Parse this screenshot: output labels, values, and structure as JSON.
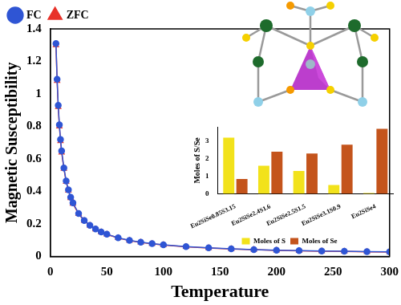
{
  "chart_data": [
    {
      "type": "line",
      "x_label": "Temperature",
      "y_label": "Magnetic Susceptibility",
      "x": [
        5,
        6,
        7,
        8,
        9,
        10,
        12,
        14,
        16,
        18,
        20,
        25,
        30,
        35,
        40,
        45,
        50,
        60,
        70,
        80,
        90,
        100,
        120,
        140,
        160,
        180,
        200,
        220,
        240,
        260,
        280,
        300
      ],
      "series": [
        {
          "name": "FC",
          "color": "#2f55d4",
          "marker": "circle",
          "line_style": "solid",
          "values": [
            1.31,
            1.09,
            0.93,
            0.81,
            0.72,
            0.65,
            0.545,
            0.465,
            0.41,
            0.365,
            0.33,
            0.265,
            0.222,
            0.192,
            0.169,
            0.151,
            0.137,
            0.115,
            0.099,
            0.088,
            0.079,
            0.072,
            0.061,
            0.053,
            0.047,
            0.043,
            0.039,
            0.036,
            0.034,
            0.032,
            0.03,
            0.029
          ]
        },
        {
          "name": "ZFC",
          "color": "#e8322a",
          "marker": "triangle",
          "line_style": "solid",
          "values": [
            1.3,
            1.08,
            0.92,
            0.8,
            0.71,
            0.64,
            0.54,
            0.46,
            0.405,
            0.36,
            0.325,
            0.262,
            0.22,
            0.19,
            0.167,
            0.15,
            0.136,
            0.114,
            0.098,
            0.087,
            0.078,
            0.071,
            0.06,
            0.052,
            0.046,
            0.042,
            0.038,
            0.035,
            0.033,
            0.031,
            0.029,
            0.028
          ]
        }
      ],
      "xlim": [
        0,
        300
      ],
      "xticks": [
        0,
        50,
        100,
        150,
        200,
        250,
        300
      ],
      "ylim": [
        0,
        1.4
      ],
      "yticks": [
        0,
        0.2,
        0.4,
        0.6,
        0.8,
        1,
        1.2,
        1.4
      ],
      "grid": false,
      "legend": "top"
    },
    {
      "type": "bar",
      "y_label": "Moles of S/Se",
      "categories": [
        "Eu2SiSe0.85S3.15",
        "Eu2SiSe2.4S1.6",
        "Eu2SiSe2.5S1.5",
        "Eu2SiSe3.1S0.9",
        "Eu2SiSe4"
      ],
      "series": [
        {
          "name": "Moles of S",
          "color": "#f2e21b",
          "values": [
            3.2,
            1.6,
            1.3,
            0.5,
            0.05
          ]
        },
        {
          "name": "Moles of Se",
          "color": "#c4541c",
          "values": [
            0.85,
            2.4,
            2.3,
            2.8,
            3.7
          ]
        }
      ],
      "ylim": [
        0,
        3.8
      ],
      "yticks": [
        0,
        1,
        2,
        3
      ],
      "grid": false,
      "legend": "bottom"
    }
  ]
}
